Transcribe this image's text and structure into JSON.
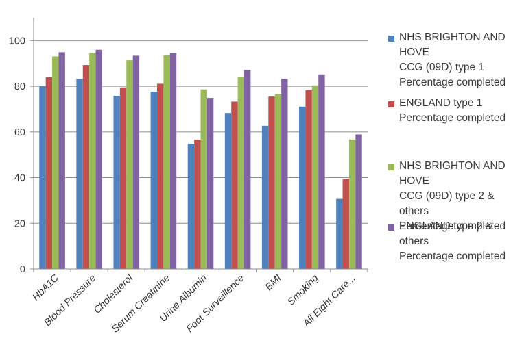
{
  "chart_data": {
    "type": "bar",
    "title": "",
    "xlabel": "",
    "ylabel": "",
    "ylim": [
      0,
      110
    ],
    "yticks": [
      0,
      20,
      40,
      60,
      80,
      100
    ],
    "grid": true,
    "legend_position": "right",
    "categories": [
      "HbA1C",
      "Blood Pressure",
      "Cholesterol",
      "Serum Creatinine",
      "Urine Albumin",
      "Foot Surveillence",
      "BMI",
      "Smoking",
      "All Eight Care..."
    ],
    "series": [
      {
        "name": "NHS BRIGHTON AND HOVE CCG (09D) type 1 Percentage completed",
        "color": "#4F81BD",
        "values": [
          80,
          83.3,
          75.8,
          77.6,
          54.8,
          68.3,
          62.7,
          71.1,
          30.7
        ]
      },
      {
        "name": "ENGLAND type 1 Percentage completed",
        "color": "#C0504D",
        "values": [
          84,
          89.3,
          79.5,
          81.1,
          56.6,
          73.3,
          75.5,
          78.3,
          39.4
        ]
      },
      {
        "name": "NHS BRIGHTON AND HOVE CCG (09D) type 2 & others Percentage completed",
        "color": "#9BBB59",
        "values": [
          93.1,
          94.6,
          91.4,
          93.6,
          78.6,
          84.2,
          76.7,
          80.4,
          56.7
        ]
      },
      {
        "name": "ENGLAND type 2 & others Percentage completed",
        "color": "#8064A2",
        "values": [
          94.9,
          96,
          93.4,
          94.6,
          74.9,
          87.1,
          83.3,
          85.2,
          58.9
        ]
      }
    ],
    "legend_lines": [
      [
        "NHS BRIGHTON AND HOVE",
        "CCG (09D) type 1",
        "Percentage completed"
      ],
      [
        "ENGLAND type 1",
        "Percentage completed"
      ],
      [
        "NHS BRIGHTON AND HOVE",
        "CCG (09D) type 2 & others",
        "Percentage completed"
      ],
      [
        "ENGLAND type 2 & others",
        "Percentage completed"
      ]
    ]
  }
}
